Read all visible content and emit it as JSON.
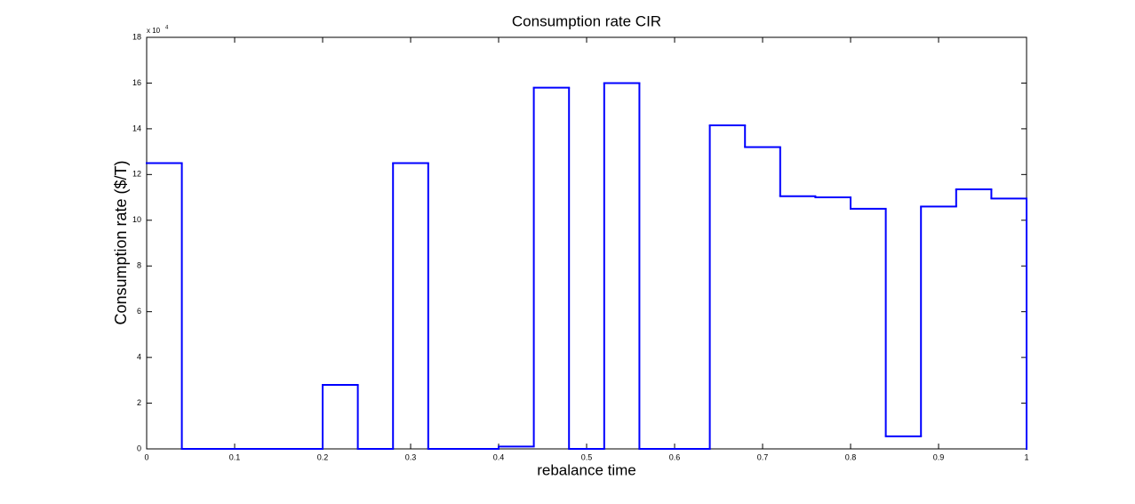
{
  "chart_data": {
    "type": "stairs",
    "title": "Consumption rate CIR",
    "x_label": "rebalance time",
    "y_label": "Consumption rate ($/T)",
    "y_label_color": "#ff0000",
    "y_multiplier_base": "x 10",
    "y_multiplier_exponent": "4",
    "x": [
      0,
      0.04,
      0.08,
      0.12,
      0.16,
      0.2,
      0.24,
      0.28,
      0.32,
      0.36,
      0.4,
      0.44,
      0.48,
      0.52,
      0.56,
      0.6,
      0.64,
      0.68,
      0.72,
      0.76,
      0.8,
      0.84,
      0.88,
      0.92,
      0.96,
      1
    ],
    "series": [
      {
        "color": "#0000ff",
        "values": [
          12.5,
          0,
          0,
          0,
          0,
          2.8,
          0,
          12.5,
          0,
          0,
          0.1,
          15.8,
          0,
          16.0,
          0,
          0,
          14.15,
          13.2,
          11.05,
          11.0,
          10.5,
          0.55,
          10.6,
          11.35,
          10.95,
          0
        ]
      }
    ],
    "xlim": [
      0,
      1
    ],
    "ylim": [
      0,
      18
    ],
    "xticks": [
      0,
      0.1,
      0.2,
      0.3,
      0.4,
      0.5,
      0.6,
      0.7,
      0.8,
      0.9,
      1
    ],
    "yticks": [
      0,
      2,
      4,
      6,
      8,
      10,
      12,
      14,
      16,
      18
    ],
    "grid": false
  }
}
